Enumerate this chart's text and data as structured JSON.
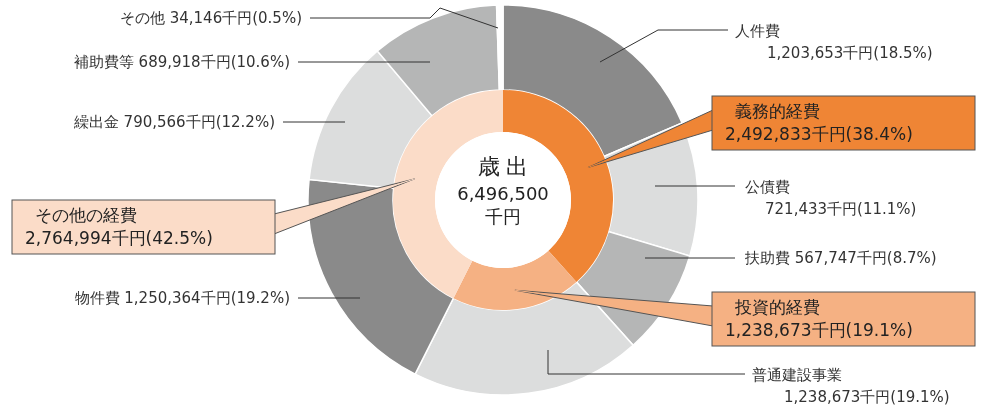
{
  "chart_data": [
    {
      "type": "donut",
      "title": "歳 出",
      "subtitle": "6,496,500千円",
      "categories": [
        "義務的経費",
        "投資的経費",
        "その他の経費"
      ],
      "values": [
        2492833,
        1238673,
        2764994
      ],
      "value_labels": [
        "2,492,833千円(38.4%)",
        "1,238,673千円(19.1%)",
        "2,764,994千円(42.5%)"
      ],
      "colors": [
        "#ef8535",
        "#f5b183",
        "#fbdcc8"
      ]
    },
    {
      "type": "donut",
      "categories": [
        "人件費",
        "公債費",
        "扶助費",
        "普通建設事業",
        "物件費",
        "繰出金",
        "補助費等",
        "その他"
      ],
      "values": [
        1203653,
        721433,
        567747,
        1238673,
        1250364,
        790566,
        689918,
        34146
      ],
      "value_labels": [
        "1,203,653千円(18.5%)",
        "721,433千円(11.1%)",
        "567,747千円(8.7%)",
        "1,238,673千円(19.1%)",
        "1,250,364千円(19.2%)",
        "790,566千円(12.2%)",
        "689,918千円(10.6%)",
        "34,146千円(0.5%)"
      ],
      "colors": [
        "#8a8a8a",
        "#dcdddd",
        "#b5b6b6",
        "#dcdddd",
        "#8a8a8a",
        "#dcdddd",
        "#b5b6b6",
        "#ffffff"
      ]
    }
  ]
}
